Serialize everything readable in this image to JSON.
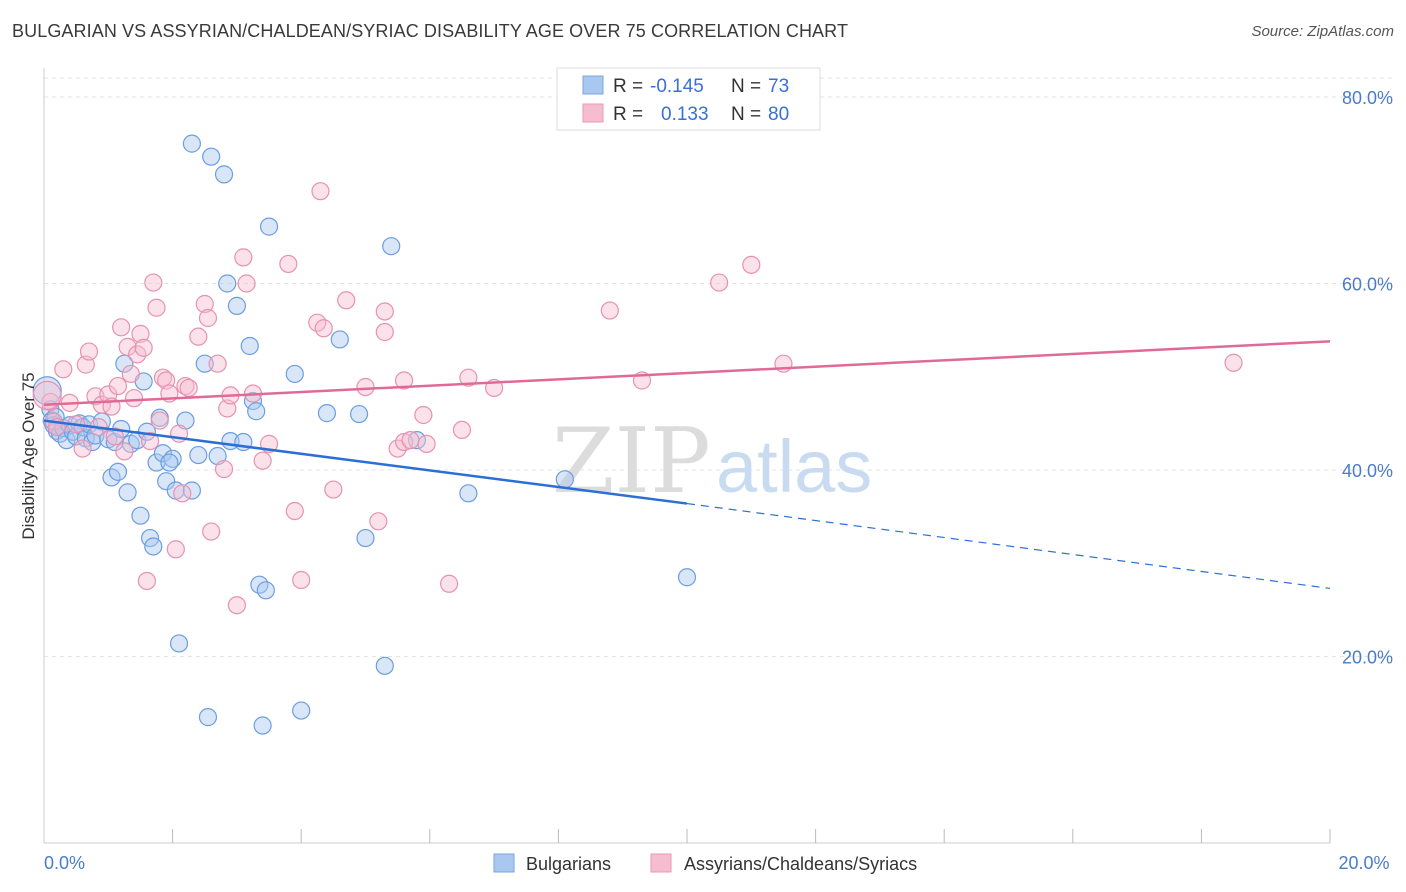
{
  "title": "BULGARIAN VS ASSYRIAN/CHALDEAN/SYRIAC DISABILITY AGE OVER 75 CORRELATION CHART",
  "source": "Source: ZipAtlas.com",
  "watermark": {
    "zip": "ZIP",
    "atlas": "atlas"
  },
  "legend": {
    "r_label": "R =",
    "n_label": "N =",
    "rows": [
      {
        "r": "-0.145",
        "n": "73",
        "color": "#a9c8f0"
      },
      {
        "r": "0.133",
        "n": "80",
        "color": "#f6bcd0"
      }
    ]
  },
  "chart_data": {
    "type": "scatter",
    "title": "BULGARIAN VS ASSYRIAN/CHALDEAN/SYRIAC DISABILITY AGE OVER 75 CORRELATION CHART",
    "xlabel": "",
    "ylabel": "Disability Age Over 75",
    "xlim": [
      0,
      20
    ],
    "ylim": [
      0,
      83
    ],
    "x_ticks": [
      "0.0%",
      "20.0%"
    ],
    "y_ticks": [
      {
        "value": 20,
        "label": "20.0%"
      },
      {
        "value": 40,
        "label": "40.0%"
      },
      {
        "value": 60,
        "label": "60.0%"
      },
      {
        "value": 80,
        "label": "80.0%"
      }
    ],
    "grid": true,
    "legend_position": "bottom",
    "series": [
      {
        "name": "Bulgarians",
        "color": "#a9c8f0",
        "stroke": "#6b9ee0",
        "line_color": "#2b6fd6",
        "trend": {
          "x0": 0,
          "y0": 45.3,
          "x1": 10,
          "y1": 36.4,
          "dash_to_x": 20,
          "dash_to_y": 27.3
        },
        "points": [
          [
            0.05,
            48.5
          ],
          [
            0.1,
            46.5
          ],
          [
            0.12,
            45.3
          ],
          [
            0.15,
            44.8
          ],
          [
            0.18,
            45.7
          ],
          [
            0.2,
            44.2
          ],
          [
            0.25,
            43.9
          ],
          [
            0.3,
            44.5
          ],
          [
            0.35,
            43.2
          ],
          [
            0.4,
            44.8
          ],
          [
            0.45,
            44.1
          ],
          [
            0.5,
            43.6
          ],
          [
            0.55,
            45.0
          ],
          [
            0.6,
            44.6
          ],
          [
            0.65,
            43.4
          ],
          [
            0.7,
            44.9
          ],
          [
            0.75,
            43.0
          ],
          [
            0.8,
            43.7
          ],
          [
            0.9,
            45.2
          ],
          [
            1.0,
            43.3
          ],
          [
            1.05,
            39.2
          ],
          [
            1.1,
            43.0
          ],
          [
            1.15,
            39.8
          ],
          [
            1.2,
            44.4
          ],
          [
            1.25,
            51.4
          ],
          [
            1.3,
            37.6
          ],
          [
            1.35,
            42.8
          ],
          [
            1.45,
            43.2
          ],
          [
            1.5,
            35.1
          ],
          [
            1.55,
            49.5
          ],
          [
            1.6,
            44.1
          ],
          [
            1.65,
            32.7
          ],
          [
            1.7,
            31.8
          ],
          [
            1.75,
            40.8
          ],
          [
            1.8,
            45.6
          ],
          [
            1.85,
            41.8
          ],
          [
            1.9,
            38.8
          ],
          [
            2.0,
            41.2
          ],
          [
            2.05,
            37.8
          ],
          [
            2.1,
            21.4
          ],
          [
            2.2,
            45.3
          ],
          [
            2.3,
            75.0
          ],
          [
            2.4,
            41.6
          ],
          [
            2.5,
            51.4
          ],
          [
            2.55,
            13.5
          ],
          [
            2.6,
            73.6
          ],
          [
            2.7,
            41.5
          ],
          [
            2.8,
            71.7
          ],
          [
            2.85,
            60.0
          ],
          [
            2.9,
            43.1
          ],
          [
            3.0,
            57.6
          ],
          [
            3.1,
            43.0
          ],
          [
            3.2,
            53.3
          ],
          [
            3.25,
            47.4
          ],
          [
            3.3,
            46.3
          ],
          [
            3.35,
            27.7
          ],
          [
            3.4,
            12.6
          ],
          [
            3.45,
            27.1
          ],
          [
            3.5,
            66.1
          ],
          [
            3.9,
            50.3
          ],
          [
            4.0,
            14.2
          ],
          [
            4.4,
            46.1
          ],
          [
            4.6,
            54.0
          ],
          [
            4.9,
            46.0
          ],
          [
            5.0,
            32.7
          ],
          [
            5.3,
            19.0
          ],
          [
            5.4,
            64.0
          ],
          [
            5.8,
            43.2
          ],
          [
            6.6,
            37.5
          ],
          [
            8.1,
            39.0
          ],
          [
            10.0,
            28.5
          ],
          [
            2.3,
            37.8
          ],
          [
            1.95,
            40.8
          ]
        ]
      },
      {
        "name": "Assyrians/Chaldeans/Syriacs",
        "color": "#f6bcd0",
        "stroke": "#e792b0",
        "line_color": "#e06a97",
        "trend": {
          "x0": 0,
          "y0": 47.0,
          "x1": 20,
          "y1": 53.8
        },
        "points": [
          [
            0.1,
            47.3
          ],
          [
            0.15,
            45.2
          ],
          [
            0.2,
            44.6
          ],
          [
            0.3,
            50.8
          ],
          [
            0.4,
            47.2
          ],
          [
            0.5,
            44.9
          ],
          [
            0.6,
            42.3
          ],
          [
            0.65,
            51.3
          ],
          [
            0.7,
            52.7
          ],
          [
            0.8,
            47.9
          ],
          [
            0.85,
            44.6
          ],
          [
            0.9,
            47.0
          ],
          [
            1.0,
            48.1
          ],
          [
            1.05,
            46.8
          ],
          [
            1.1,
            43.6
          ],
          [
            1.15,
            49.0
          ],
          [
            1.2,
            55.3
          ],
          [
            1.25,
            42.0
          ],
          [
            1.3,
            53.2
          ],
          [
            1.35,
            50.3
          ],
          [
            1.4,
            47.7
          ],
          [
            1.45,
            52.4
          ],
          [
            1.5,
            54.6
          ],
          [
            1.55,
            53.1
          ],
          [
            1.6,
            28.1
          ],
          [
            1.65,
            43.1
          ],
          [
            1.7,
            60.1
          ],
          [
            1.75,
            57.4
          ],
          [
            1.8,
            45.3
          ],
          [
            1.85,
            49.9
          ],
          [
            1.9,
            49.6
          ],
          [
            1.95,
            48.2
          ],
          [
            2.05,
            31.5
          ],
          [
            2.1,
            43.9
          ],
          [
            2.15,
            37.5
          ],
          [
            2.2,
            49.0
          ],
          [
            2.25,
            48.8
          ],
          [
            2.4,
            54.3
          ],
          [
            2.5,
            57.8
          ],
          [
            2.55,
            56.3
          ],
          [
            2.6,
            33.4
          ],
          [
            2.7,
            51.4
          ],
          [
            2.8,
            40.1
          ],
          [
            2.85,
            46.6
          ],
          [
            3.0,
            25.5
          ],
          [
            3.1,
            62.8
          ],
          [
            3.15,
            60.0
          ],
          [
            3.25,
            48.2
          ],
          [
            3.4,
            41.0
          ],
          [
            3.5,
            42.8
          ],
          [
            3.8,
            62.1
          ],
          [
            3.9,
            35.6
          ],
          [
            4.0,
            28.2
          ],
          [
            4.25,
            55.8
          ],
          [
            4.3,
            69.9
          ],
          [
            4.35,
            55.2
          ],
          [
            4.5,
            37.9
          ],
          [
            4.7,
            58.2
          ],
          [
            5.0,
            48.9
          ],
          [
            5.2,
            34.5
          ],
          [
            5.3,
            54.8
          ],
          [
            5.3,
            57.0
          ],
          [
            5.5,
            42.3
          ],
          [
            5.6,
            43.0
          ],
          [
            5.6,
            49.6
          ],
          [
            5.7,
            43.2
          ],
          [
            5.9,
            45.9
          ],
          [
            5.95,
            42.8
          ],
          [
            6.3,
            27.8
          ],
          [
            6.5,
            44.3
          ],
          [
            6.6,
            49.9
          ],
          [
            7.0,
            48.8
          ],
          [
            8.8,
            57.1
          ],
          [
            9.3,
            49.6
          ],
          [
            10.5,
            60.1
          ],
          [
            11.0,
            62.0
          ],
          [
            11.5,
            51.4
          ],
          [
            18.5,
            51.5
          ],
          [
            0.05,
            48.0
          ],
          [
            2.9,
            48.0
          ]
        ]
      }
    ]
  }
}
